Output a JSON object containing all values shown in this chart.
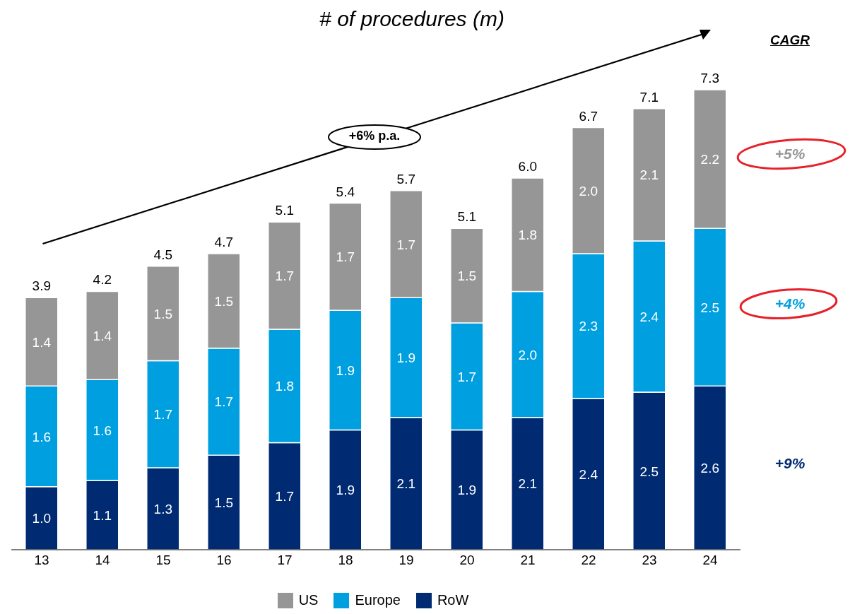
{
  "chart_data": {
    "type": "bar",
    "title": "# of procedures (m)",
    "categories": [
      "13",
      "14",
      "15",
      "16",
      "17",
      "18",
      "19",
      "20",
      "21",
      "22",
      "23",
      "24"
    ],
    "series": [
      {
        "name": "RoW",
        "color": "#002b73",
        "values": [
          1.0,
          1.1,
          1.3,
          1.5,
          1.7,
          1.9,
          2.1,
          1.9,
          2.1,
          2.4,
          2.5,
          2.6
        ],
        "value_labels": [
          "1.0",
          "1.1",
          "1.3",
          "1.5",
          "1.7",
          "1.9",
          "2.1",
          "1.9",
          "2.1",
          "2.4",
          "2.5",
          "2.6"
        ]
      },
      {
        "name": "Europe",
        "color": "#009fdf",
        "values": [
          1.6,
          1.6,
          1.7,
          1.7,
          1.8,
          1.9,
          1.9,
          1.7,
          2.0,
          2.3,
          2.4,
          2.5
        ],
        "value_labels": [
          "1.6",
          "1.6",
          "1.7",
          "1.7",
          "1.8",
          "1.9",
          "1.9",
          "1.7",
          "2.0",
          "2.3",
          "2.4",
          "2.5"
        ]
      },
      {
        "name": "US",
        "color": "#969696",
        "values": [
          1.4,
          1.4,
          1.5,
          1.5,
          1.7,
          1.7,
          1.7,
          1.5,
          1.8,
          2.0,
          2.1,
          2.2
        ],
        "value_labels": [
          "1.4",
          "1.4",
          "1.5",
          "1.5",
          "1.7",
          "1.7",
          "1.7",
          "1.5",
          "1.8",
          "2.0",
          "2.1",
          "2.2"
        ]
      }
    ],
    "stacked": true,
    "totals": [
      "3.9",
      "4.2",
      "4.5",
      "4.7",
      "5.1",
      "5.4",
      "5.7",
      "5.1",
      "6.0",
      "6.7",
      "7.1",
      "7.3"
    ],
    "legend": "bottom",
    "annotations": [
      "+6% p.a.",
      "CAGR",
      "+5%",
      "+4%",
      "+9%"
    ]
  }
}
